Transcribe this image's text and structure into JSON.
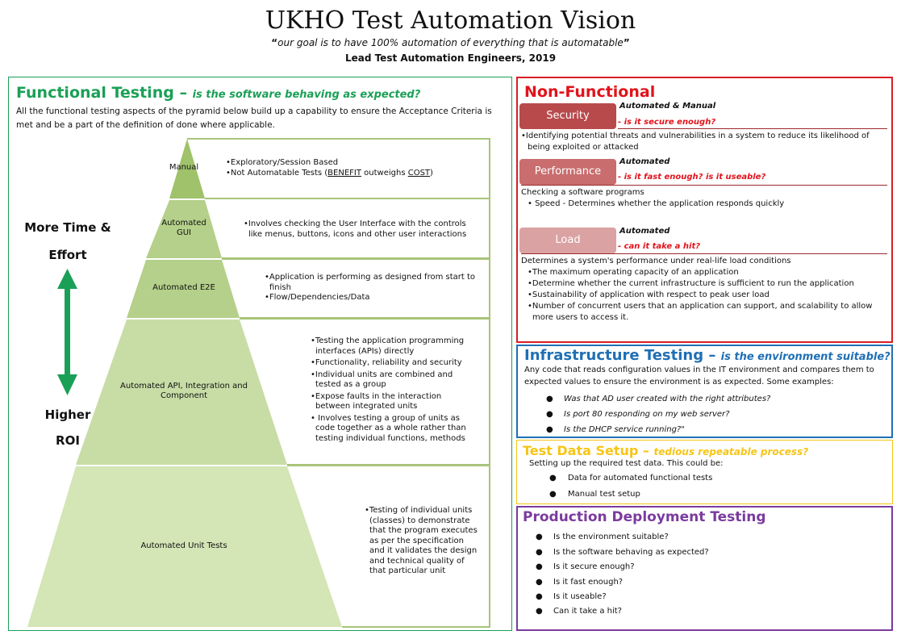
{
  "header": {
    "title": "UKHO Test Automation Vision",
    "quote_open": "“",
    "quote": "our goal is to have 100% automation of everything that is automatable",
    "quote_close": "”",
    "author": "Lead Test Automation Engineers, 2019"
  },
  "functional": {
    "title": "Functional Testing – ",
    "question": "is the software behaving as expected?",
    "description": "All the functional testing aspects of the pyramid below build up a capability to ensure the Acceptance Criteria is met and be a part of the definition of done where applicable.",
    "side_top_1": "More Time &",
    "side_top_2": "Effort",
    "side_bottom_1": "Higher",
    "side_bottom_2": "ROI",
    "colors": {
      "pyramid_top": "#9fc26a",
      "pyramid_mid": "#b4d08a",
      "pyramid_low": "#c8dda6",
      "pyramid_base": "#d4e5b6",
      "arrow": "#1aa056"
    },
    "layers": [
      {
        "label_1": "Manual",
        "label_2": "",
        "bullets": [
          "•Exploratory/Session Based"
        ],
        "bullet_last_pre": "•Not Automatable Tests (",
        "benefit": "BENEFIT",
        "mid": " outweighs ",
        "cost": "COST",
        "post": ")"
      },
      {
        "label_1": "Automated",
        "label_2": "GUI",
        "bullets": [
          "•Involves checking the User Interface with the controls like menus, buttons, icons and other user interactions"
        ]
      },
      {
        "label_1": "Automated E2E",
        "label_2": "",
        "bullets": [
          "•Application is performing as designed from start to finish",
          "•Flow/Dependencies/Data"
        ]
      },
      {
        "label_1": "Automated API, Integration and",
        "label_2": "Component",
        "bullets": [
          "•Testing the application programming interfaces (APIs) directly",
          "•Functionality, reliability and security",
          "•Individual units are combined and tested as a group",
          "•Expose faults in the interaction between integrated units",
          "• Involves testing a group of units as code together as a whole rather than testing individual functions, methods"
        ]
      },
      {
        "label_1": "Automated Unit Tests",
        "label_2": "",
        "bullets": [
          "•Testing of individual units (classes) to demonstrate that the program executes as per the specification and it validates the design and technical quality of that particular unit"
        ]
      }
    ]
  },
  "non_functional": {
    "title": "Non-Functional",
    "security": {
      "label": "Security",
      "mode": "Automated & Manual",
      "question": "- is it secure enough?",
      "color": "#b94a4c",
      "text": "•Identifying potential threats and vulnerabilities in a system to reduce its likelihood of being exploited or attacked"
    },
    "performance": {
      "label": "Performance",
      "mode": "Automated",
      "question": "- is it fast enough? is it useable?",
      "color": "#c96d6e",
      "intro": "Checking a software programs",
      "bullets": [
        "• Speed - Determines whether the application responds quickly"
      ]
    },
    "load": {
      "label": "Load",
      "mode": "Automated",
      "question": "- can it take a hit?",
      "color": "#dba2a3",
      "intro": "Determines a system's performance under real-life load conditions",
      "bullets": [
        "•The maximum operating capacity of an application",
        "•Determine whether the current infrastructure is sufficient to run the application",
        "•Sustainability of application with respect to peak user load",
        "•Number of concurrent users that an application can support, and scalability to allow more users to access it."
      ]
    }
  },
  "infrastructure": {
    "title": "Infrastructure Testing – ",
    "question": "is the environment suitable?",
    "text": "Any code that reads configuration values in the IT environment and compares them to expected values to ensure the environment is as expected. Some examples:",
    "examples": [
      "Was that AD user created with the right attributes?",
      "Is port 80 responding on my web server?",
      "Is the DHCP service running?\""
    ]
  },
  "test_data": {
    "title": "Test Data Setup – ",
    "question": "tedious repeatable process?",
    "text": "Setting up the required test data. This could be:",
    "items": [
      "Data for automated functional tests",
      "Manual test setup"
    ]
  },
  "production": {
    "title": "Production Deployment Testing",
    "items": [
      "Is the environment suitable?",
      "Is the software behaving as expected?",
      "Is it secure enough?",
      "Is it fast enough?",
      "Is it useable?",
      "Can it take a hit?"
    ]
  },
  "bullet_glyph": "●"
}
